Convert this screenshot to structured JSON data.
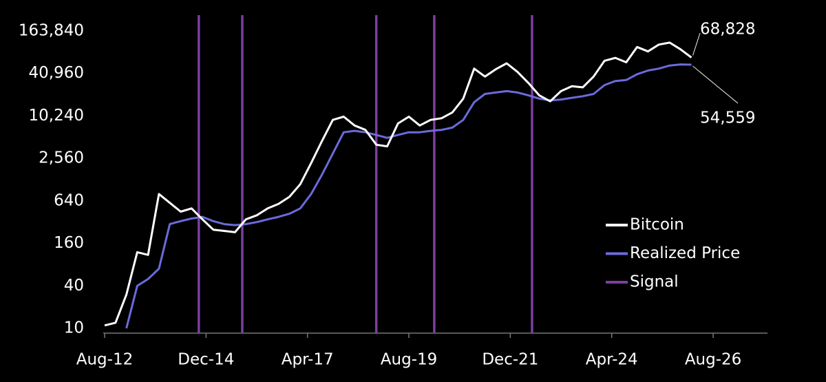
{
  "chart_data": {
    "type": "line",
    "log_scale": true,
    "background": "#000000",
    "legend": "lower right",
    "xlim": [
      "Aug-12",
      "Nov-27"
    ],
    "xticks": [
      "Aug-12",
      "Dec-14",
      "Apr-17",
      "Aug-19",
      "Dec-21",
      "Apr-24",
      "Aug-26"
    ],
    "ylim": [
      10,
      163840
    ],
    "yticks": [
      10,
      40,
      160,
      640,
      {
        "value": 2560,
        "label": "2,560"
      },
      {
        "value": 10240,
        "label": "10,240"
      },
      {
        "value": 40960,
        "label": "40,960"
      },
      {
        "value": 163840,
        "label": "163,840"
      }
    ],
    "x": [
      "Aug-12",
      "Nov-12",
      "Feb-13",
      "May-13",
      "Aug-13",
      "Nov-13",
      "Feb-14",
      "May-14",
      "Aug-14",
      "Nov-14",
      "Feb-15",
      "May-15",
      "Aug-15",
      "Nov-15",
      "Feb-16",
      "May-16",
      "Aug-16",
      "Nov-16",
      "Feb-17",
      "May-17",
      "Aug-17",
      "Nov-17",
      "Feb-18",
      "May-18",
      "Aug-18",
      "Nov-18",
      "Feb-19",
      "May-19",
      "Aug-19",
      "Nov-19",
      "Feb-20",
      "May-20",
      "Aug-20",
      "Nov-20",
      "Feb-21",
      "May-21",
      "Aug-21",
      "Nov-21",
      "Feb-22",
      "May-22",
      "Aug-22",
      "Nov-22",
      "Feb-23",
      "May-23",
      "Aug-23",
      "Nov-23",
      "Feb-24",
      "May-24",
      "Aug-24",
      "Nov-24",
      "Feb-25",
      "May-25",
      "Aug-25",
      "Nov-25",
      "Feb-26"
    ],
    "series": [
      {
        "name": "Bitcoin",
        "color": "#ffffff",
        "last_label": "68,828",
        "values": [
          11,
          12,
          30,
          120,
          110,
          800,
          600,
          450,
          500,
          350,
          250,
          240,
          230,
          350,
          400,
          500,
          580,
          730,
          1100,
          2200,
          4500,
          9000,
          10000,
          7500,
          6500,
          4000,
          3800,
          8000,
          10000,
          7500,
          9000,
          9500,
          11500,
          18000,
          48000,
          37000,
          47000,
          57000,
          43000,
          30000,
          20000,
          16500,
          23000,
          27000,
          26000,
          37000,
          62000,
          68000,
          59000,
          97000,
          84000,
          105000,
          112000,
          90000,
          68828
        ]
      },
      {
        "name": "Realized Price",
        "color": "#6b6bdc",
        "last_label": "54,559",
        "values": [
          null,
          null,
          10,
          40,
          50,
          70,
          300,
          330,
          360,
          380,
          330,
          300,
          290,
          300,
          320,
          350,
          380,
          420,
          500,
          800,
          1500,
          3000,
          6000,
          6300,
          6000,
          5500,
          5000,
          5500,
          6000,
          6000,
          6300,
          6500,
          7000,
          9000,
          16000,
          21000,
          22000,
          23000,
          22000,
          20000,
          18000,
          17000,
          17500,
          18500,
          19500,
          21000,
          28000,
          32000,
          33000,
          40000,
          45000,
          48000,
          53000,
          55000,
          54559
        ]
      }
    ],
    "signals": {
      "name": "Signal",
      "color": "#7b3fa0",
      "x": [
        "Oct-14",
        "Oct-15",
        "Nov-18",
        "Mar-20",
        "Jun-22"
      ]
    }
  }
}
